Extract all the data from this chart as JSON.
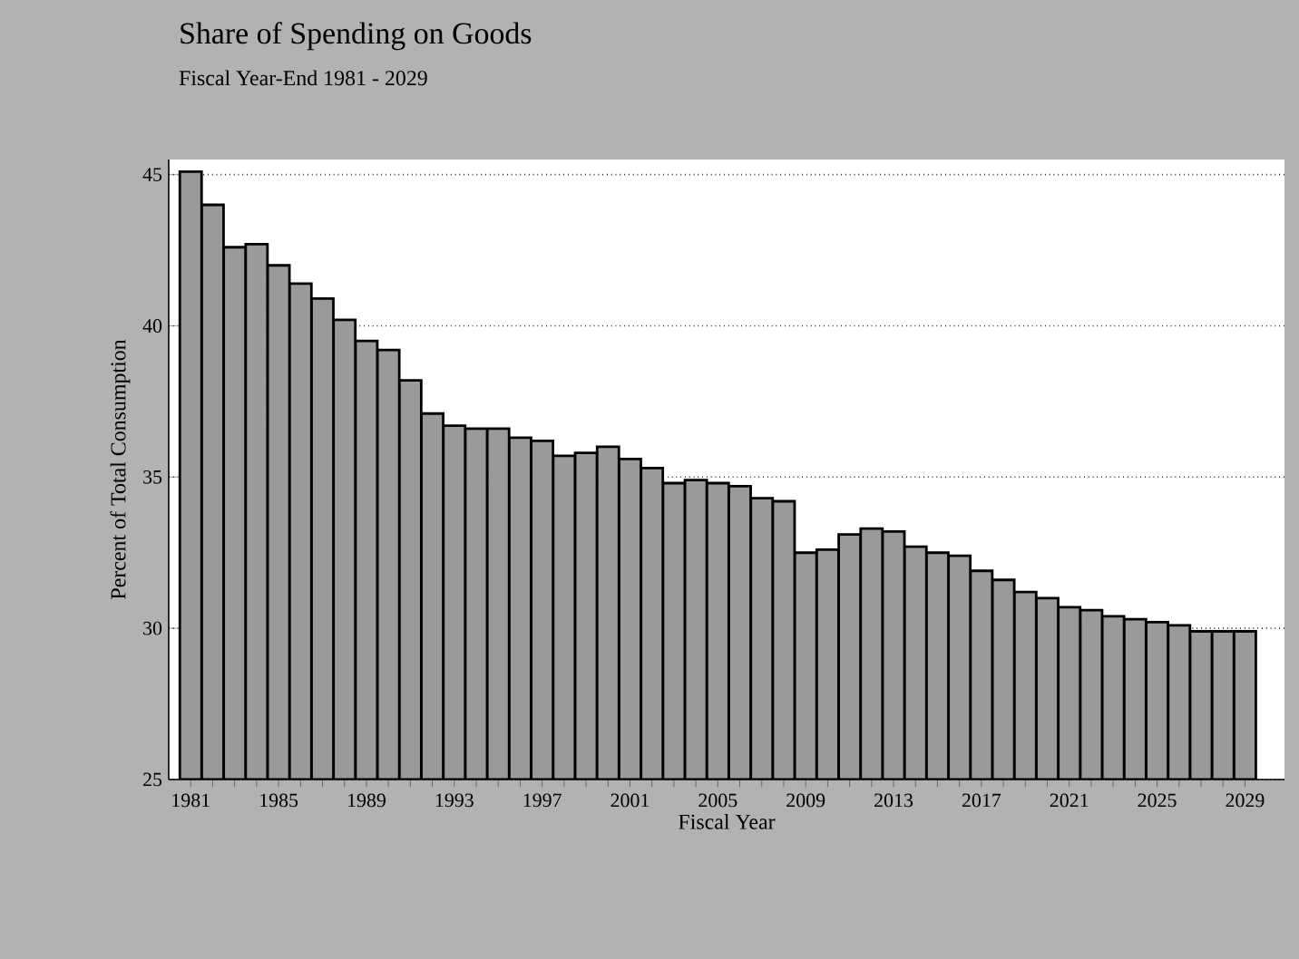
{
  "chart_data": {
    "type": "bar",
    "title": "Share of Spending on Goods",
    "subtitle": "Fiscal Year-End 1981 - 2029",
    "xlabel": "Fiscal Year",
    "ylabel": "Percent of Total Consumption",
    "categories": [
      "1981",
      null,
      null,
      null,
      "1985",
      null,
      null,
      null,
      "1989",
      null,
      null,
      null,
      "1993",
      null,
      null,
      null,
      "1997",
      null,
      null,
      null,
      "2001",
      null,
      null,
      null,
      "2005",
      null,
      null,
      null,
      "2009",
      null,
      null,
      null,
      "2013",
      null,
      null,
      null,
      "2017",
      null,
      null,
      null,
      "2021",
      null,
      null,
      null,
      "2025",
      null,
      null,
      null,
      "2029"
    ],
    "values": [
      45.1,
      44.0,
      42.6,
      42.7,
      42.0,
      41.4,
      40.9,
      40.2,
      39.5,
      39.2,
      38.2,
      37.1,
      36.7,
      36.6,
      36.6,
      36.3,
      36.2,
      35.7,
      35.8,
      36.0,
      35.6,
      35.3,
      34.8,
      34.9,
      34.8,
      34.7,
      34.3,
      34.2,
      32.5,
      32.6,
      33.1,
      33.3,
      33.2,
      32.7,
      32.5,
      32.4,
      31.9,
      31.6,
      31.2,
      31.0,
      30.7,
      30.6,
      30.4,
      30.3,
      30.2,
      30.1,
      29.9,
      29.9,
      29.9
    ],
    "color": "#9a9a9a",
    "ylim": [
      25,
      45.5
    ],
    "yticks": [
      25,
      30,
      35,
      40,
      45
    ],
    "grid": "y"
  }
}
